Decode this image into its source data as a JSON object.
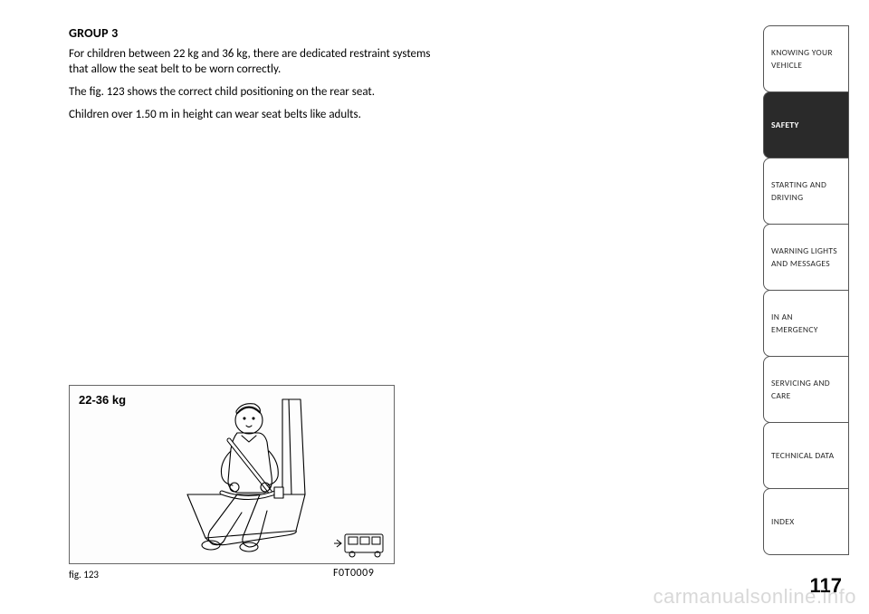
{
  "content": {
    "heading": "GROUP 3",
    "p1": "For children between 22 kg and 36 kg, there are dedicated restraint systems that allow the seat belt to be worn correctly.",
    "p2": "The fig. 123 shows the correct child positioning on the rear seat.",
    "p3": "Children over 1.50 m in height can wear seat belts like adults."
  },
  "figure": {
    "weight_label": "22-36 kg",
    "caption_left": "fig. 123",
    "caption_right": "F0T0009",
    "stroke": "#000000",
    "fill": "#ffffff"
  },
  "page_number": "117",
  "watermark": "carmanualsonline.info",
  "tabs": [
    {
      "lines": [
        "KNOWING YOUR",
        "VEHICLE"
      ],
      "active": false
    },
    {
      "lines": [
        "SAFETY"
      ],
      "active": true
    },
    {
      "lines": [
        "STARTING AND",
        "DRIVING"
      ],
      "active": false
    },
    {
      "lines": [
        "WARNING LIGHTS",
        "AND MESSAGES"
      ],
      "active": false
    },
    {
      "lines": [
        "IN AN EMERGENCY"
      ],
      "active": false
    },
    {
      "lines": [
        "SERVICING AND",
        "CARE"
      ],
      "active": false
    },
    {
      "lines": [
        "TECHNICAL DATA"
      ],
      "active": false
    },
    {
      "lines": [
        "INDEX"
      ],
      "active": false
    }
  ],
  "colors": {
    "page_bg": "#ffffff",
    "text": "#000000",
    "tab_border": "#555555",
    "tab_active_bg": "#2a2a2a",
    "tab_active_fg": "#ffffff",
    "watermark": "#d8d8d8"
  }
}
